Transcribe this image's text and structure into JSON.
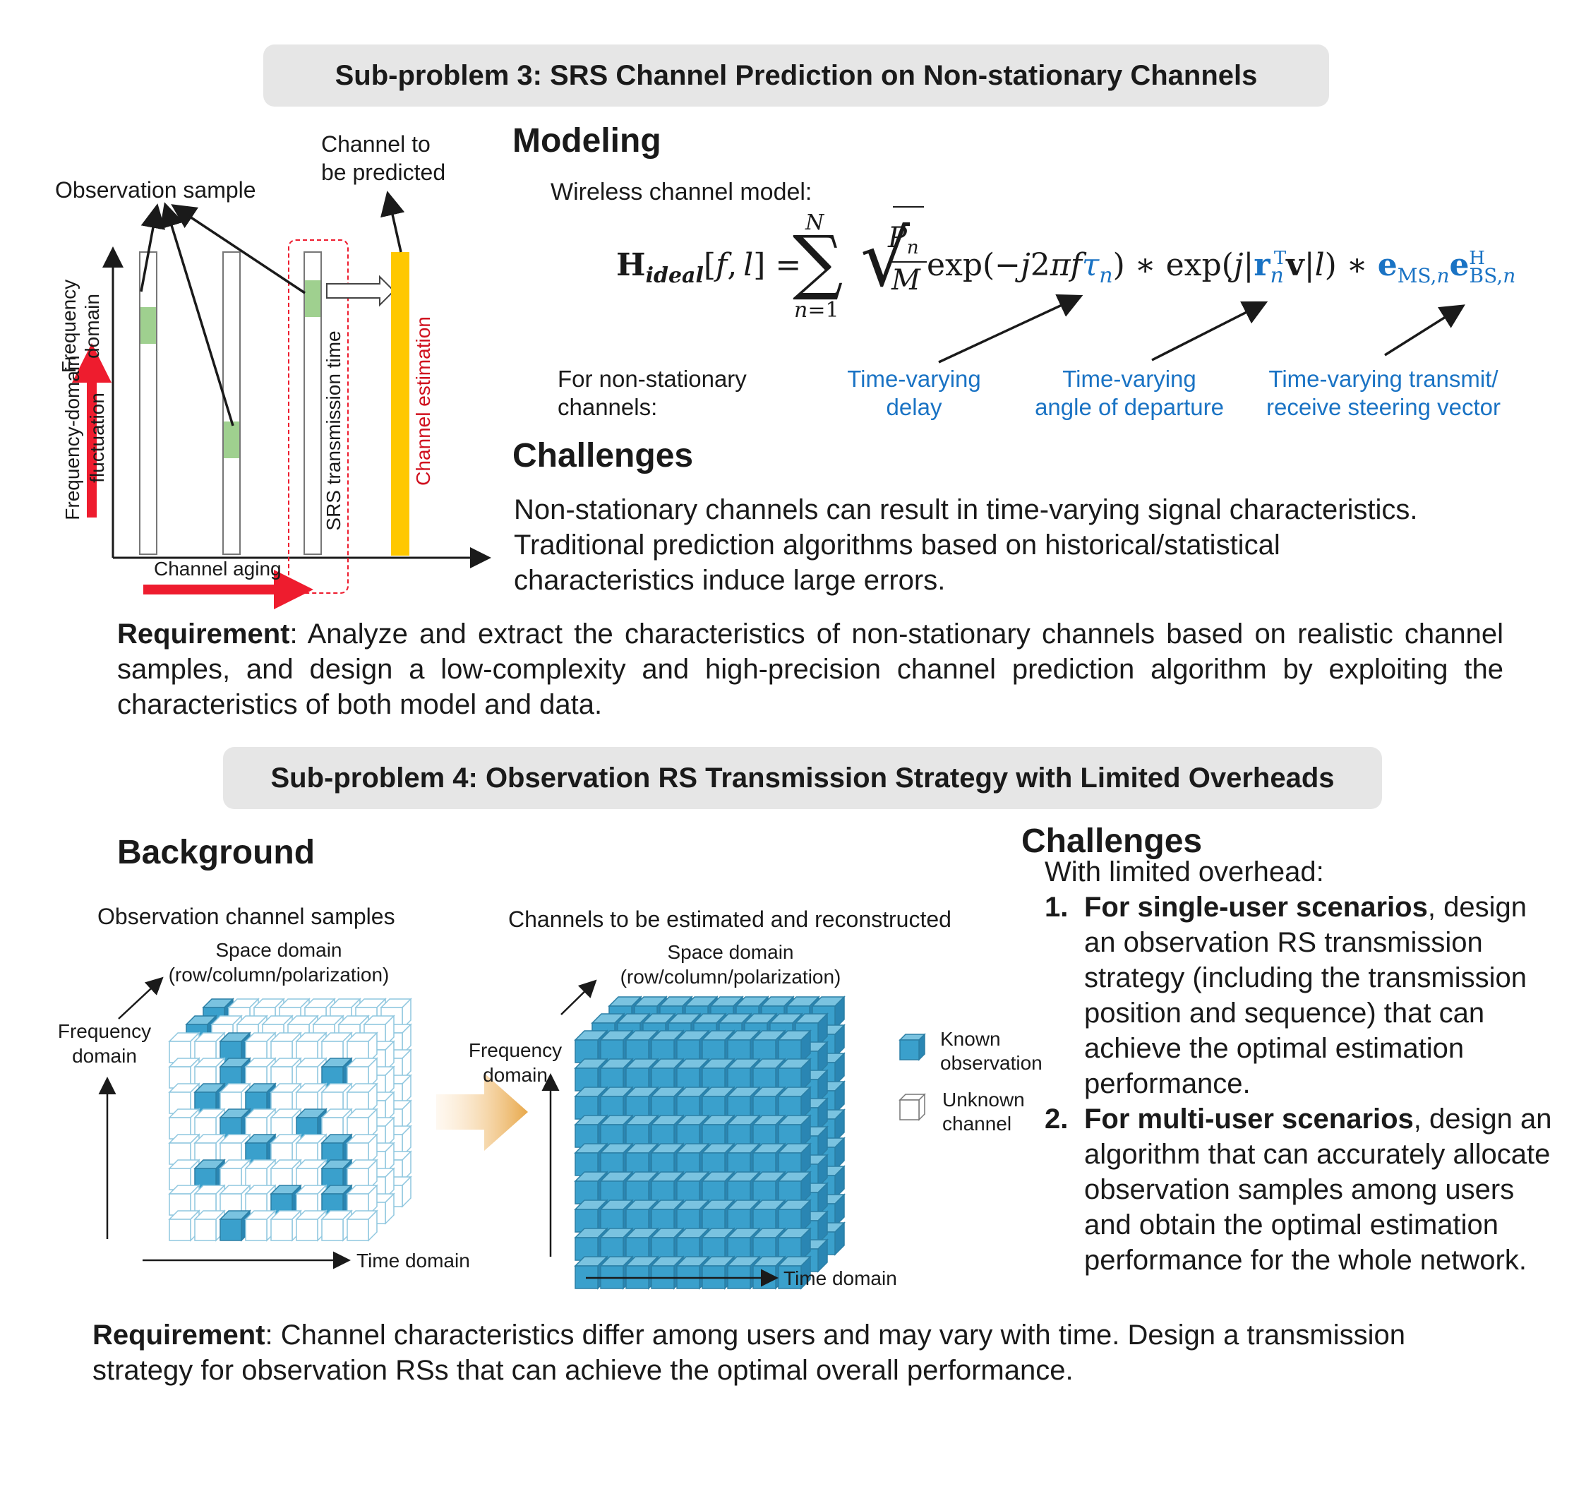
{
  "sub3": {
    "title": "Sub-problem 3: SRS Channel Prediction on Non-stationary Channels",
    "diagram": {
      "observation_sample": "Observation sample",
      "channel_to_be_predicted_1": "Channel to",
      "channel_to_be_predicted_2": "be predicted",
      "frequency_domain_1": "Frequency",
      "frequency_domain_2": "domain",
      "freq_fluct_1": "Frequency-domain",
      "freq_fluct_2": "fluctuation",
      "srs_time": "SRS transmission time",
      "channel_estimation": "Channel estimation",
      "channel_aging": "Channel aging"
    },
    "modeling": {
      "heading": "Modeling",
      "model_label": "Wireless channel model:",
      "nonstat_1": "For non-stationary",
      "nonstat_2": "channels:",
      "annot_delay_1": "Time-varying",
      "annot_delay_2": "delay",
      "annot_angle_1": "Time-varying",
      "annot_angle_2": "angle of departure",
      "annot_steer_1": "Time-varying transmit/",
      "annot_steer_2": "receive steering vector"
    },
    "challenges": {
      "heading": "Challenges",
      "line1": "Non-stationary channels can result in time-varying signal characteristics.",
      "line2": "Traditional prediction algorithms based on historical/statistical",
      "line3": "characteristics induce large errors."
    },
    "requirement": {
      "label": "Requirement",
      "text": ": Analyze and extract the characteristics of non-stationary channels based on realistic channel samples, and design a low-complexity and high-precision channel prediction algorithm by exploiting the characteristics of both model and data."
    }
  },
  "sub4": {
    "title": "Sub-problem 4: Observation RS Transmission Strategy with Limited Overheads",
    "background": {
      "heading": "Background",
      "obs_title": "Observation channel samples",
      "est_title": "Channels to be estimated and reconstructed",
      "space_1": "Space domain",
      "space_2": "(row/column/polarization)",
      "freq_1": "Frequency",
      "freq_2": "domain",
      "time": "Time domain",
      "legend_known_1": "Known",
      "legend_known_2": "observation",
      "legend_unknown_1": "Unknown",
      "legend_unknown_2": "channel"
    },
    "challenges": {
      "heading": "Challenges",
      "intro": "With limited overhead:",
      "items": [
        {
          "num": "1.",
          "bold": "For single-user scenarios",
          "text": ", design an observation RS transmission strategy (including the transmission position and sequence) that can achieve the optimal estimation performance."
        },
        {
          "num": "2.",
          "bold": "For multi-user scenarios",
          "text": ", design an algorithm that can accurately allocate observation samples among users and obtain the optimal estimation performance for the whole network."
        }
      ]
    },
    "requirement": {
      "label": "Requirement",
      "text": ": Channel characteristics differ among users and may vary with time. Design a transmission strategy for observation RSs that can achieve the optimal overall performance."
    }
  },
  "colors": {
    "banner_bg": "#e6e6e6",
    "annotation_blue": "#1a73c4",
    "cube_blue": "#3aa0cc",
    "srs_green": "#9fd08f",
    "estimation_yellow": "#ffc800",
    "arrow_red": "#ee1c2e"
  }
}
